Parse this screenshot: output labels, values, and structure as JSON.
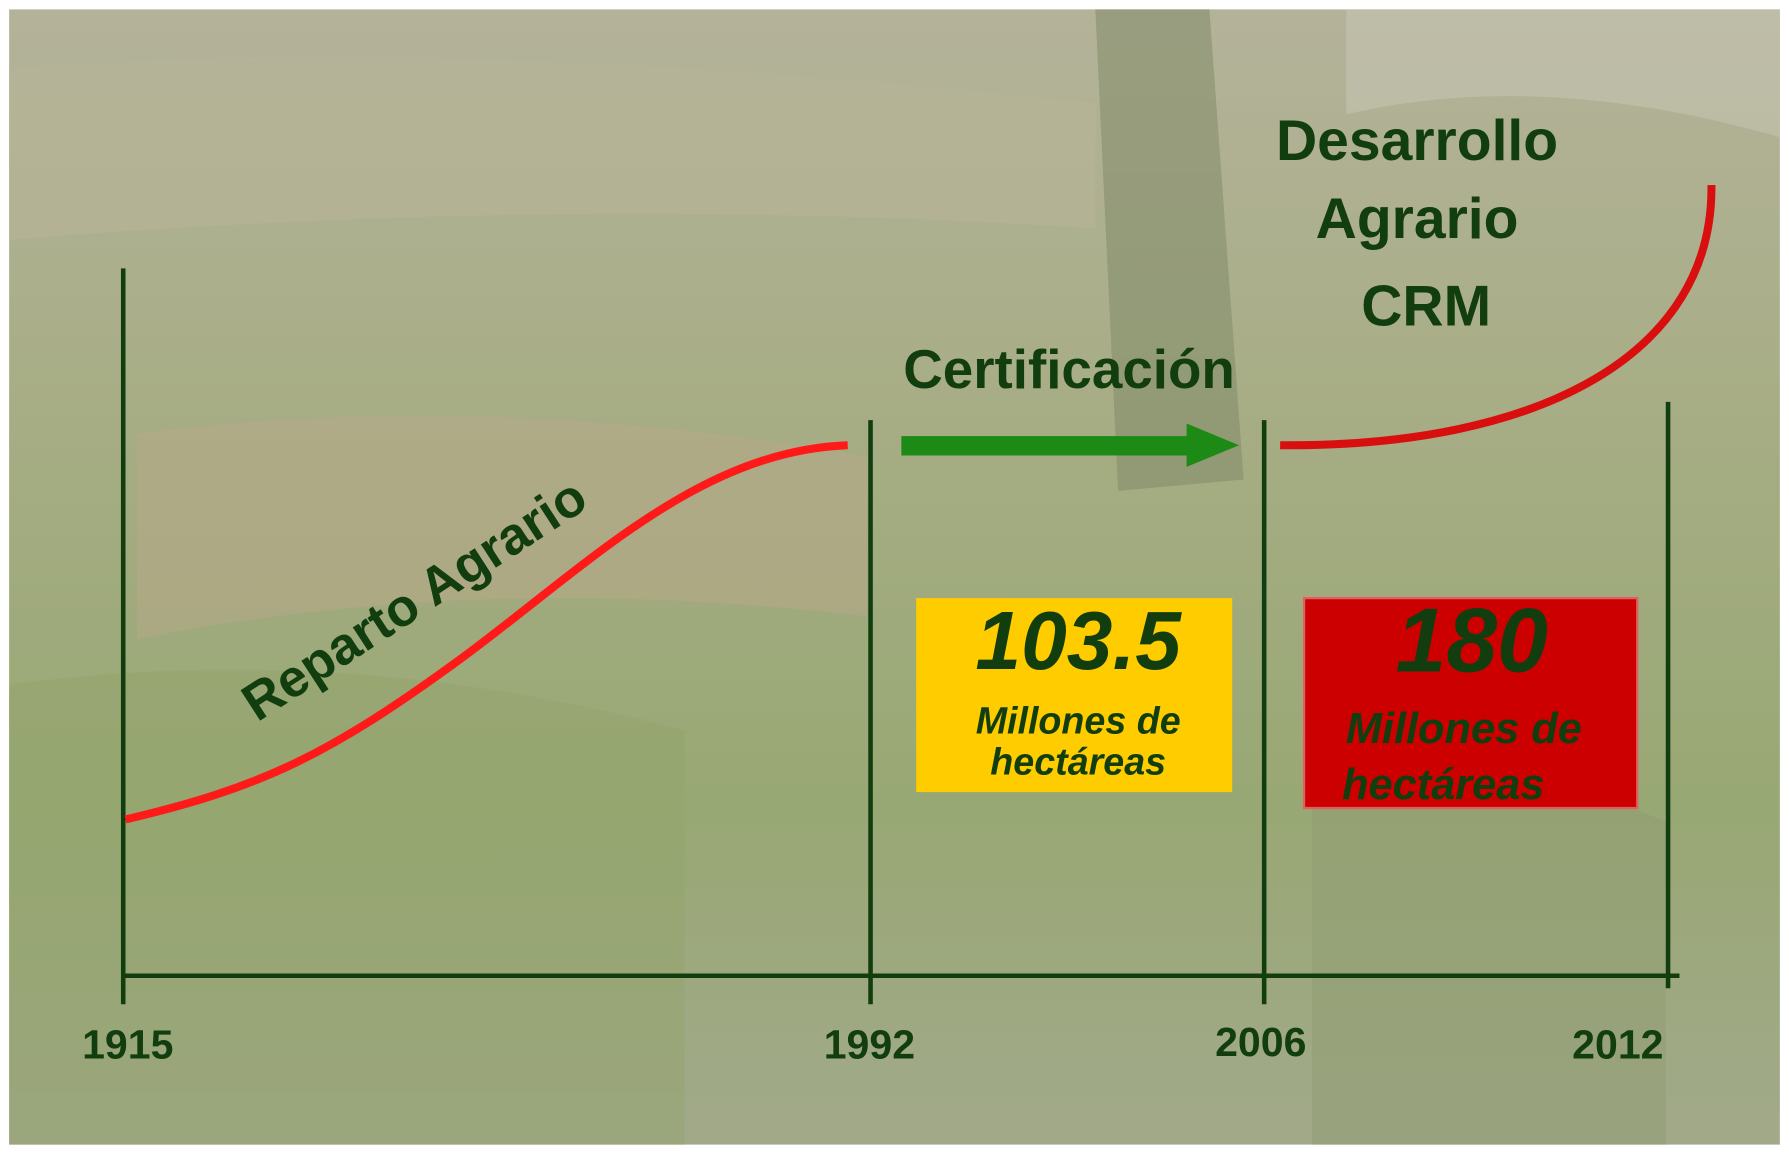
{
  "timeline": {
    "years": [
      "1915",
      "1992",
      "2006",
      "2012"
    ]
  },
  "phases": [
    {
      "label": "Reparto Agrario"
    },
    {
      "label": "Certificación"
    },
    {
      "label_lines": [
        "Desarrollo",
        "Agrario",
        "CRM"
      ]
    }
  ],
  "boxes": [
    {
      "value": "103.5",
      "caption_lines": [
        "Millones de",
        "hectáreas"
      ]
    },
    {
      "value": "180",
      "caption_lines": [
        "Millones de",
        "hectáreas"
      ]
    }
  ]
}
